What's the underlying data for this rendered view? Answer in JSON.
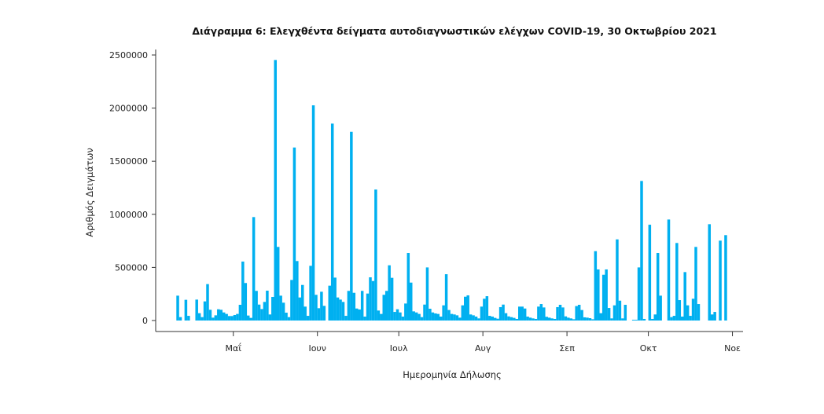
{
  "chart_data": {
    "type": "bar",
    "title": "Διάγραμμα 6: Ελεγχθέντα δείγματα αυτοδιαγνωστικών ελέγχων COVID-19, 30 Οκτωβρίου 2021",
    "xlabel": "Ημερομηνία Δήλωσης",
    "ylabel": "Αριθμός Δειγμάτων",
    "ylim": [
      0,
      2500000
    ],
    "yticks": [
      "0",
      "500000",
      "1000000",
      "1500000",
      "2000000",
      "2500000"
    ],
    "x_start_date": "2021-04-10",
    "x_interval": "daily",
    "xticks": [
      {
        "label": "Μαΐ",
        "date": "2021-05-01"
      },
      {
        "label": "Ιουν",
        "date": "2021-06-01"
      },
      {
        "label": "Ιουλ",
        "date": "2021-07-01"
      },
      {
        "label": "Αυγ",
        "date": "2021-08-01"
      },
      {
        "label": "Σεπ",
        "date": "2021-09-01"
      },
      {
        "label": "Οκτ",
        "date": "2021-10-01"
      },
      {
        "label": "Νοε",
        "date": "2021-11-01"
      }
    ],
    "grid": false,
    "bar_color": "#00b0f0",
    "values": [
      234000,
      32000,
      0,
      195000,
      44000,
      0,
      0,
      197000,
      69000,
      32000,
      180000,
      343000,
      101000,
      27000,
      49000,
      106000,
      101000,
      76000,
      62000,
      42000,
      42000,
      52000,
      62000,
      148000,
      555000,
      353000,
      47000,
      25000,
      974000,
      279000,
      150000,
      108000,
      175000,
      281000,
      57000,
      222000,
      2453000,
      693000,
      234000,
      168000,
      74000,
      32000,
      382000,
      1629000,
      560000,
      217000,
      335000,
      131000,
      44000,
      515000,
      2026000,
      242000,
      116000,
      271000,
      138000,
      0,
      328000,
      1854000,
      404000,
      217000,
      197000,
      175000,
      44000,
      279000,
      1777000,
      261000,
      113000,
      104000,
      279000,
      37000,
      254000,
      407000,
      372000,
      1233000,
      94000,
      62000,
      242000,
      279000,
      520000,
      402000,
      81000,
      106000,
      76000,
      37000,
      160000,
      636000,
      357000,
      86000,
      76000,
      62000,
      32000,
      150000,
      500000,
      111000,
      76000,
      67000,
      62000,
      37000,
      143000,
      436000,
      99000,
      62000,
      57000,
      49000,
      27000,
      143000,
      224000,
      237000,
      57000,
      49000,
      37000,
      20000,
      131000,
      205000,
      229000,
      44000,
      37000,
      25000,
      17000,
      126000,
      150000,
      69000,
      39000,
      32000,
      25000,
      15000,
      131000,
      131000,
      113000,
      37000,
      27000,
      20000,
      15000,
      131000,
      155000,
      123000,
      35000,
      27000,
      20000,
      15000,
      126000,
      148000,
      123000,
      39000,
      27000,
      20000,
      12000,
      136000,
      148000,
      99000,
      30000,
      27000,
      22000,
      12000,
      653000,
      481000,
      69000,
      431000,
      481000,
      118000,
      20000,
      143000,
      764000,
      187000,
      20000,
      148000,
      0,
      0,
      7000,
      7000,
      500000,
      1314000,
      15000,
      0,
      902000,
      15000,
      57000,
      636000,
      234000,
      0,
      0,
      951000,
      32000,
      44000,
      730000,
      192000,
      37000,
      456000,
      143000,
      44000,
      205000,
      693000,
      155000,
      0,
      0,
      0,
      907000,
      57000,
      81000,
      0,
      752000,
      0,
      804000
    ]
  }
}
